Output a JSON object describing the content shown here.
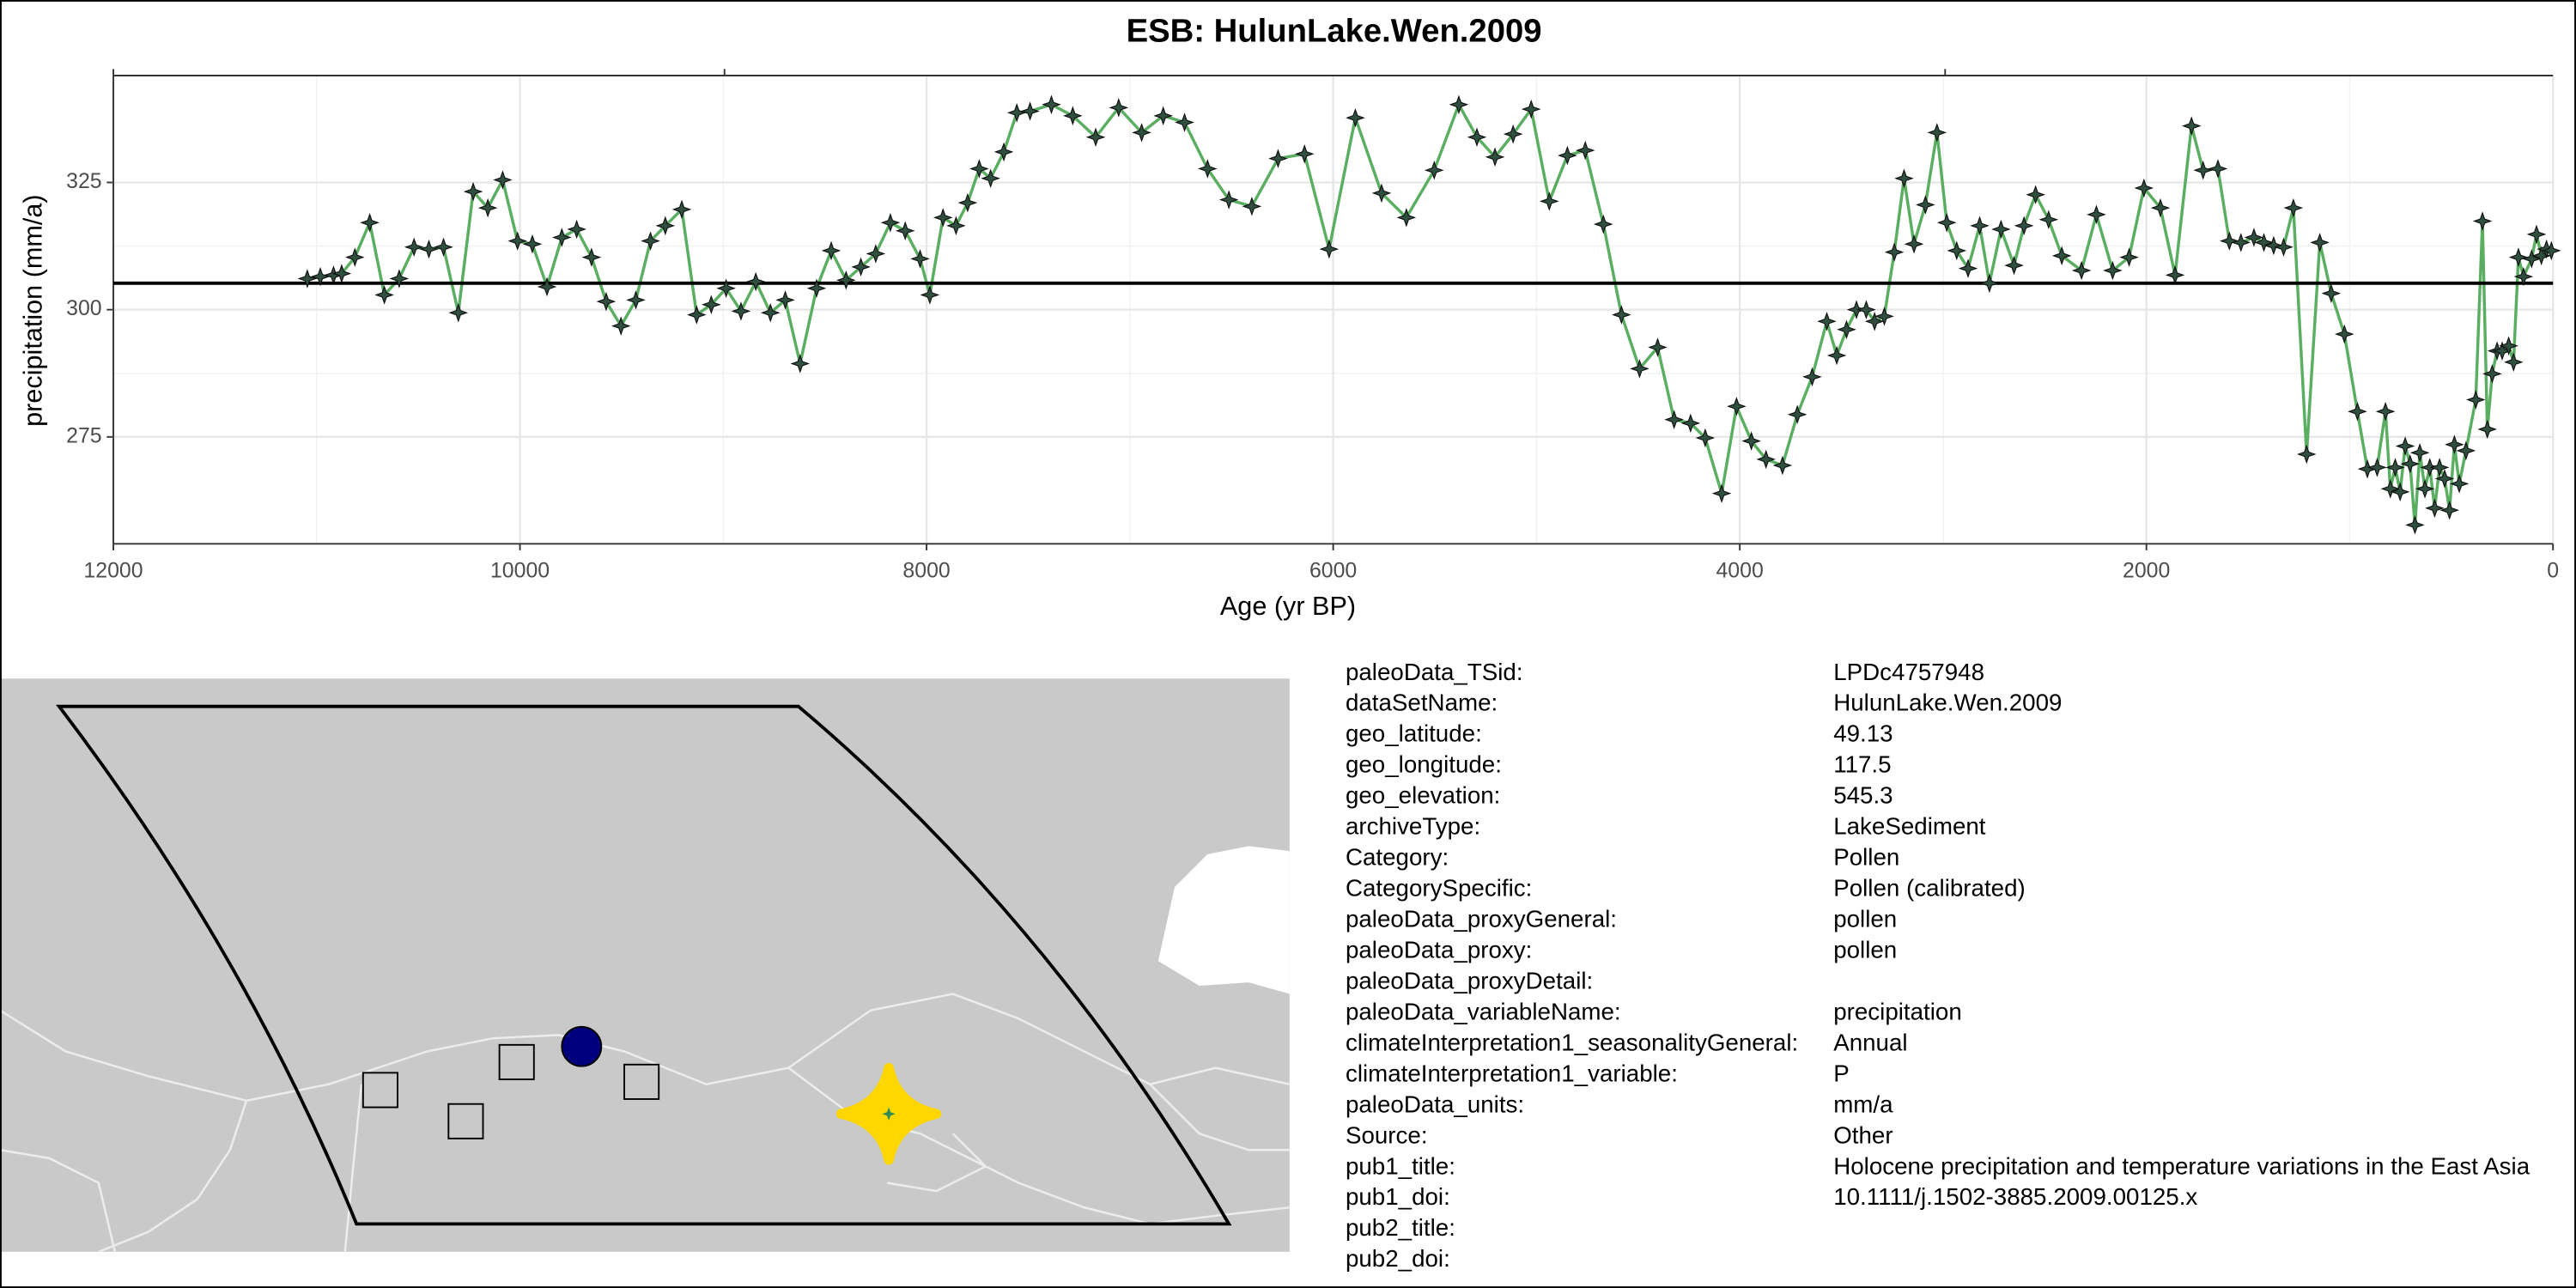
{
  "chart_data": {
    "type": "line",
    "title": "ESB: HulunLake.Wen.2009",
    "x_label": "Age (yr BP)",
    "y_label": "precipitation (mm/a)",
    "xlim": [
      12000,
      0
    ],
    "xticks": [
      12000,
      10000,
      8000,
      6000,
      4000,
      2000,
      0
    ],
    "ylim": [
      254,
      346
    ],
    "yticks": [
      275,
      300,
      325
    ],
    "grid": true,
    "hline": 305.2,
    "series": [
      {
        "color": "#5aae61",
        "x": [
          11046,
          10982,
          10917,
          10877,
          10812,
          10739,
          10667,
          10594,
          10521,
          10448,
          10376,
          10303,
          10230,
          10158,
          10085,
          10012,
          9939,
          9867,
          9794,
          9721,
          9648,
          9576,
          9503,
          9430,
          9358,
          9285,
          9204,
          9131,
          9059,
          8986,
          8913,
          8840,
          8768,
          8695,
          8622,
          8541,
          8469,
          8396,
          8323,
          8250,
          8178,
          8105,
          8032,
          7984,
          7919,
          7855,
          7798,
          7741,
          7685,
          7620,
          7556,
          7491,
          7386,
          7281,
          7168,
          7055,
          6942,
          6836,
          6731,
          6618,
          6513,
          6400,
          6271,
          6141,
          6020,
          5891,
          5762,
          5640,
          5503,
          5382,
          5293,
          5204,
          5115,
          5026,
          4937,
          4848,
          4760,
          4671,
          4582,
          4493,
          4404,
          4323,
          4242,
          4170,
          4089,
          4016,
          3943,
          3871,
          3790,
          3717,
          3644,
          3572,
          3523,
          3475,
          3426,
          3378,
          3337,
          3289,
          3240,
          3192,
          3143,
          3087,
          3030,
          2982,
          2933,
          2877,
          2820,
          2772,
          2715,
          2651,
          2602,
          2545,
          2481,
          2416,
          2319,
          2246,
          2166,
          2085,
          2012,
          1931,
          1859,
          1778,
          1721,
          1648,
          1592,
          1535,
          1471,
          1422,
          1374,
          1325,
          1277,
          1212,
          1147,
          1091,
          1026,
          962,
          913,
          865,
          824,
          800,
          776,
          752,
          727,
          703,
          679,
          655,
          630,
          606,
          582,
          558,
          533,
          509,
          485,
          461,
          428,
          380,
          347,
          323,
          299,
          275,
          250,
          218,
          194,
          170,
          145,
          105,
          81,
          57,
          32,
          8
        ],
        "values": [
          306.1,
          306.5,
          306.8,
          307.1,
          310.3,
          317.1,
          302.9,
          306.1,
          312.3,
          311.9,
          312.3,
          299.4,
          323.2,
          320,
          325.5,
          313.5,
          312.9,
          304.5,
          314.2,
          315.8,
          310.3,
          301.6,
          296.8,
          301.9,
          313.5,
          316.5,
          319.7,
          299,
          301,
          304.2,
          299.7,
          305.5,
          299.4,
          301.9,
          289.4,
          304.2,
          311.6,
          305.8,
          308.4,
          311,
          317.1,
          315.5,
          310,
          302.9,
          318.1,
          316.5,
          321,
          327.7,
          325.8,
          331,
          338.7,
          339,
          340.3,
          338.1,
          333.9,
          339.7,
          334.8,
          338.1,
          336.8,
          327.7,
          321.6,
          320.3,
          329.7,
          330.6,
          311.9,
          337.7,
          322.9,
          318.1,
          327.4,
          340.3,
          333.9,
          330,
          334.5,
          339.4,
          321.3,
          330.3,
          331.3,
          316.8,
          299,
          288.4,
          292.6,
          278.4,
          277.7,
          274.8,
          263.9,
          281,
          274.2,
          270.6,
          269.4,
          279.4,
          286.8,
          297.7,
          291,
          296.1,
          300,
          300,
          297.7,
          298.7,
          311.3,
          325.8,
          312.9,
          320.6,
          334.8,
          317.1,
          311.6,
          308.1,
          316.5,
          305.2,
          315.8,
          308.7,
          316.5,
          322.6,
          317.7,
          310.6,
          307.7,
          318.7,
          307.7,
          310.3,
          323.9,
          320,
          306.8,
          336.1,
          327.4,
          327.7,
          313.5,
          313.2,
          314.2,
          313.2,
          312.6,
          312.3,
          320,
          271.6,
          313.2,
          303.2,
          295.2,
          280,
          268.7,
          269,
          280,
          264.8,
          269,
          264.2,
          273.2,
          269.7,
          257.7,
          271.9,
          264.8,
          269,
          261,
          269,
          266.8,
          260.6,
          273.5,
          265.8,
          272.3,
          282.3,
          317.4,
          276.5,
          287.4,
          291.9,
          291.9,
          292.9,
          289.7,
          310.3,
          306.5,
          310,
          314.8,
          310.6,
          311.9,
          311.6
        ]
      }
    ]
  },
  "metadata": {
    "rows": [
      {
        "label": "paleoData_TSid:",
        "value": "LPDc4757948"
      },
      {
        "label": "dataSetName:",
        "value": "HulunLake.Wen.2009"
      },
      {
        "label": "geo_latitude:",
        "value": "49.13"
      },
      {
        "label": "geo_longitude:",
        "value": "117.5"
      },
      {
        "label": "geo_elevation:",
        "value": "545.3"
      },
      {
        "label": "archiveType:",
        "value": "LakeSediment"
      },
      {
        "label": "Category:",
        "value": "Pollen"
      },
      {
        "label": "CategorySpecific:",
        "value": "Pollen (calibrated)"
      },
      {
        "label": "paleoData_proxyGeneral:",
        "value": "pollen"
      },
      {
        "label": "paleoData_proxy:",
        "value": "pollen"
      },
      {
        "label": "paleoData_proxyDetail:"
      },
      {
        "label": "paleoData_variableName:",
        "value": "precipitation"
      },
      {
        "label": "climateInterpretation1_seasonalityGeneral:",
        "value": "Annual"
      },
      {
        "label": "climateInterpretation1_variable:",
        "value": "P"
      },
      {
        "label": "paleoData_units:",
        "value": "mm/a"
      },
      {
        "label": "Source:",
        "value": "Other"
      },
      {
        "label": "pub1_title:",
        "value": "Holocene precipitation and temperature variations in the East Asia"
      },
      {
        "label": "pub1_doi:",
        "value": "10.1111/j.1502-3885.2009.00125.x"
      },
      {
        "label": "pub2_title:"
      },
      {
        "label": "pub2_doi:"
      }
    ]
  }
}
